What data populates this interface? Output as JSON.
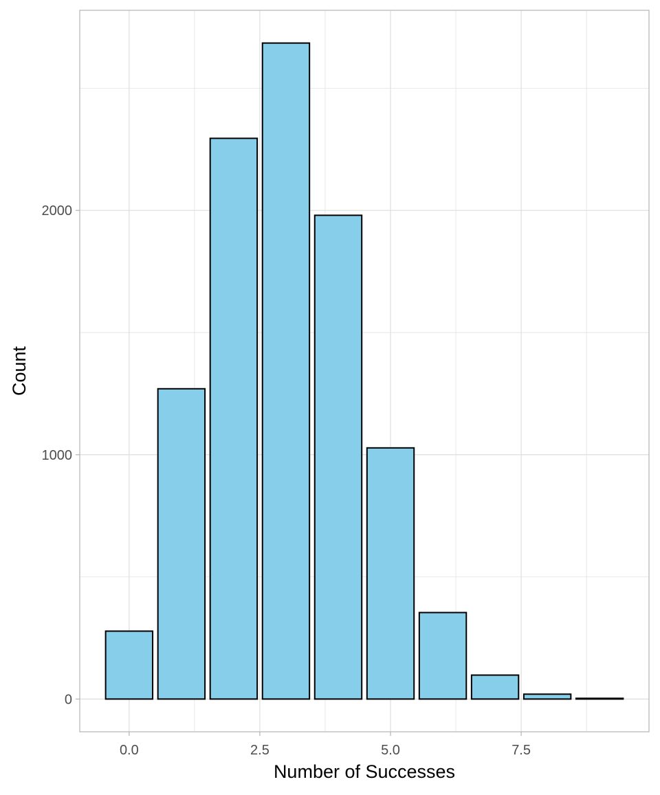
{
  "chart_data": {
    "type": "bar",
    "title": "",
    "xlabel": "Number of Successes",
    "ylabel": "Count",
    "categories": [
      0,
      1,
      2,
      3,
      4,
      5,
      6,
      7,
      8,
      9
    ],
    "values": [
      278,
      1270,
      2295,
      2685,
      1980,
      1028,
      354,
      98,
      20,
      3
    ],
    "xlim": [
      -0.945,
      9.945
    ],
    "ylim": [
      -134,
      2819
    ],
    "xticks": [
      0,
      2.5,
      5,
      7.5
    ],
    "xtick_labels": [
      "0.0",
      "2.5",
      "5.0",
      "7.5"
    ],
    "yticks": [
      0,
      1000,
      2000
    ],
    "ytick_labels": [
      "0",
      "1000",
      "2000"
    ],
    "grid": true,
    "legend": "none",
    "colors": {
      "fill": "#87CEEB",
      "outline": "#000000",
      "grid": "#dedede",
      "panel_border": "#b3b3b3"
    }
  }
}
